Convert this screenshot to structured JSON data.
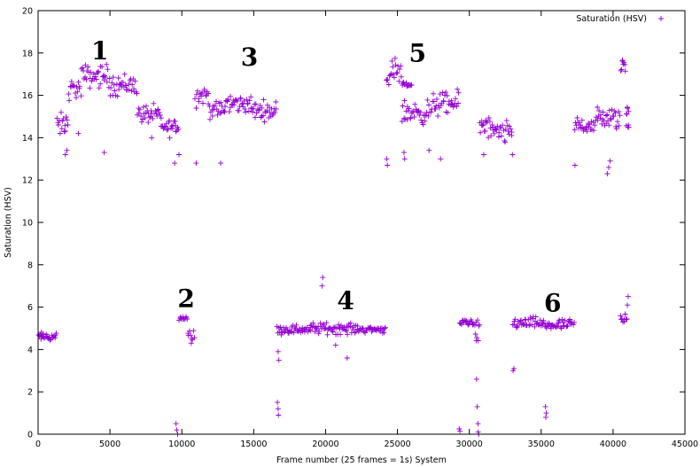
{
  "chart_data": {
    "type": "scatter",
    "title": "",
    "xlabel": "Frame number (25 frames = 1s) System",
    "ylabel": "Saturation (HSV)",
    "xlim": [
      0,
      45000
    ],
    "ylim": [
      0,
      20
    ],
    "xticks": [
      0,
      5000,
      10000,
      15000,
      20000,
      25000,
      30000,
      35000,
      40000,
      45000
    ],
    "yticks": [
      0,
      2,
      4,
      6,
      8,
      10,
      12,
      14,
      16,
      18,
      20
    ],
    "grid": false,
    "legend_position": "top-right",
    "marker": "+",
    "color": "#9400d3",
    "series": [
      {
        "name": "Saturation (HSV)",
        "segments": [
          {
            "x0": 0,
            "x1": 1300,
            "y": 4.6,
            "spread": 0.2
          },
          {
            "x0": 1300,
            "x1": 2100,
            "y": 14.6,
            "spread": 0.5
          },
          {
            "x0": 2100,
            "x1": 3000,
            "y": 16.3,
            "spread": 0.45
          },
          {
            "x0": 3000,
            "x1": 5000,
            "y": 16.9,
            "spread": 0.5
          },
          {
            "x0": 5000,
            "x1": 6900,
            "y": 16.5,
            "spread": 0.5
          },
          {
            "x0": 6900,
            "x1": 8500,
            "y": 15.1,
            "spread": 0.4
          },
          {
            "x0": 8500,
            "x1": 9800,
            "y": 14.5,
            "spread": 0.4
          },
          {
            "x0": 9800,
            "x1": 10400,
            "y": 5.5,
            "spread": 0.2
          },
          {
            "x0": 10400,
            "x1": 10900,
            "y": 4.7,
            "spread": 0.3
          },
          {
            "x0": 10900,
            "x1": 11900,
            "y": 16.0,
            "spread": 0.5
          },
          {
            "x0": 11900,
            "x1": 13000,
            "y": 15.3,
            "spread": 0.4
          },
          {
            "x0": 13000,
            "x1": 14800,
            "y": 15.6,
            "spread": 0.4
          },
          {
            "x0": 14800,
            "x1": 16600,
            "y": 15.3,
            "spread": 0.4
          },
          {
            "x0": 16600,
            "x1": 19000,
            "y": 4.95,
            "spread": 0.2
          },
          {
            "x0": 19000,
            "x1": 22000,
            "y": 5.0,
            "spread": 0.25
          },
          {
            "x0": 22000,
            "x1": 24200,
            "y": 4.95,
            "spread": 0.15
          },
          {
            "x0": 24200,
            "x1": 25300,
            "y": 17.0,
            "spread": 0.6
          },
          {
            "x0": 25300,
            "x1": 26000,
            "y": 16.5,
            "spread": 0.1
          },
          {
            "x0": 25300,
            "x1": 27400,
            "y": 15.2,
            "spread": 0.5
          },
          {
            "x0": 27400,
            "x1": 29300,
            "y": 15.6,
            "spread": 0.5
          },
          {
            "x0": 29300,
            "x1": 30400,
            "y": 5.3,
            "spread": 0.2
          },
          {
            "x0": 30400,
            "x1": 30700,
            "y": 4.8,
            "spread": 0.6
          },
          {
            "x0": 30700,
            "x1": 31500,
            "y": 14.5,
            "spread": 0.5
          },
          {
            "x0": 31500,
            "x1": 33000,
            "y": 14.2,
            "spread": 0.5
          },
          {
            "x0": 33000,
            "x1": 35000,
            "y": 5.25,
            "spread": 0.25
          },
          {
            "x0": 35000,
            "x1": 37300,
            "y": 5.15,
            "spread": 0.25
          },
          {
            "x0": 37300,
            "x1": 38800,
            "y": 14.6,
            "spread": 0.4
          },
          {
            "x0": 38800,
            "x1": 40500,
            "y": 14.9,
            "spread": 0.5
          },
          {
            "x0": 40500,
            "x1": 40900,
            "y": 17.4,
            "spread": 0.5
          },
          {
            "x0": 40500,
            "x1": 41000,
            "y": 5.5,
            "spread": 0.3
          },
          {
            "x0": 40900,
            "x1": 41100,
            "y": 15.0,
            "spread": 0.5
          }
        ],
        "outliers": [
          [
            1900,
            13.2
          ],
          [
            2000,
            13.4
          ],
          [
            2800,
            14.2
          ],
          [
            4600,
            13.3
          ],
          [
            7900,
            14.0
          ],
          [
            9500,
            12.8
          ],
          [
            9600,
            0.5
          ],
          [
            9650,
            0.2
          ],
          [
            9700,
            0.0
          ],
          [
            9800,
            13.2
          ],
          [
            11000,
            12.8
          ],
          [
            12700,
            12.8
          ],
          [
            16700,
            3.9
          ],
          [
            16750,
            3.5
          ],
          [
            16650,
            1.5
          ],
          [
            16700,
            1.2
          ],
          [
            16720,
            0.9
          ],
          [
            19800,
            7.4
          ],
          [
            19750,
            7.0
          ],
          [
            21500,
            3.6
          ],
          [
            20700,
            4.2
          ],
          [
            24250,
            13.0
          ],
          [
            24300,
            12.7
          ],
          [
            25500,
            13.0
          ],
          [
            25450,
            13.3
          ],
          [
            27200,
            13.4
          ],
          [
            28000,
            13.0
          ],
          [
            29300,
            0.25
          ],
          [
            29350,
            0.15
          ],
          [
            30500,
            2.6
          ],
          [
            30550,
            1.3
          ],
          [
            30600,
            0.5
          ],
          [
            30620,
            0.1
          ],
          [
            30650,
            0.0
          ],
          [
            33000,
            13.2
          ],
          [
            33100,
            3.1
          ],
          [
            33050,
            3.0
          ],
          [
            31000,
            13.2
          ],
          [
            35300,
            1.3
          ],
          [
            35350,
            1.0
          ],
          [
            35320,
            0.8
          ],
          [
            37350,
            12.7
          ],
          [
            39600,
            12.3
          ],
          [
            39700,
            12.6
          ],
          [
            39800,
            12.9
          ],
          [
            41050,
            6.5
          ],
          [
            41000,
            6.1
          ],
          [
            41100,
            14.5
          ]
        ]
      }
    ],
    "annotations": [
      {
        "text": "1",
        "x": 4300,
        "y": 17.7
      },
      {
        "text": "2",
        "x": 10300,
        "y": 6.0
      },
      {
        "text": "3",
        "x": 14700,
        "y": 17.4
      },
      {
        "text": "4",
        "x": 21400,
        "y": 5.9
      },
      {
        "text": "5",
        "x": 26400,
        "y": 17.6
      },
      {
        "text": "6",
        "x": 35800,
        "y": 5.8
      }
    ]
  }
}
